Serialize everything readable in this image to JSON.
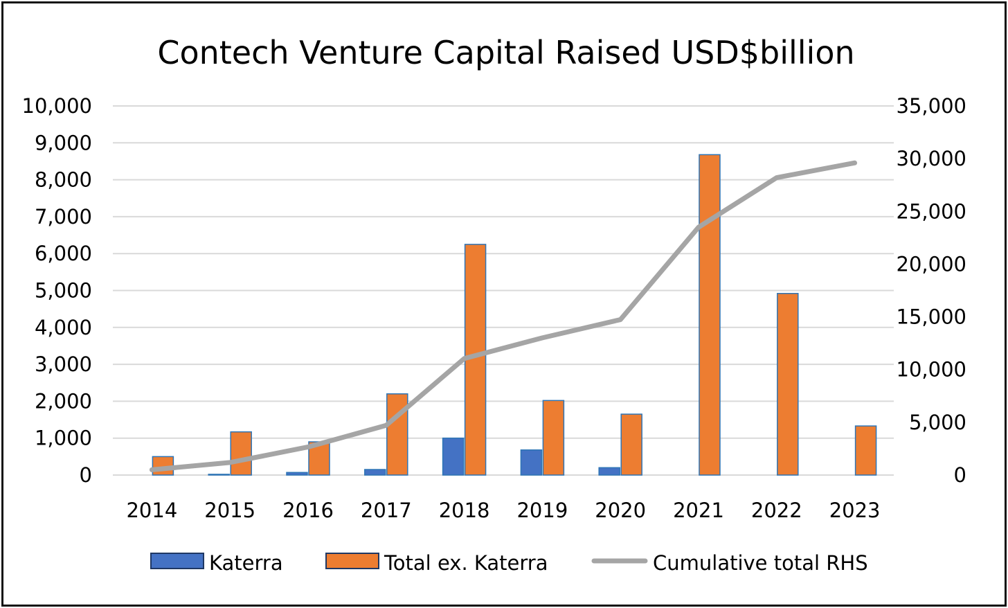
{
  "chart_data": {
    "type": "bar",
    "title": "Contech Venture Capital Raised USD$billion",
    "categories": [
      "2014",
      "2015",
      "2016",
      "2017",
      "2018",
      "2019",
      "2020",
      "2021",
      "2022",
      "2023"
    ],
    "series": [
      {
        "name": "Katerra",
        "type": "bar",
        "axis": "left",
        "color": "#4472c4",
        "values": [
          0,
          20,
          70,
          150,
          1000,
          680,
          200,
          0,
          0,
          0
        ]
      },
      {
        "name": "Total ex. Katerra",
        "type": "bar",
        "axis": "left",
        "color": "#ed7d31",
        "values": [
          500,
          1170,
          900,
          2200,
          6250,
          2020,
          1650,
          8680,
          4920,
          1330
        ]
      },
      {
        "name": "Cumulative total RHS",
        "type": "line",
        "axis": "right",
        "color": "#a5a5a5",
        "values": [
          500,
          1190,
          2660,
          4710,
          11050,
          13010,
          14740,
          23500,
          28200,
          29600
        ]
      }
    ],
    "y_left": {
      "min": 0,
      "max": 10000,
      "step": 1000,
      "tick_labels": [
        "0",
        "1,000",
        "2,000",
        "3,000",
        "4,000",
        "5,000",
        "6,000",
        "7,000",
        "8,000",
        "9,000",
        "10,000"
      ]
    },
    "y_right": {
      "min": 0,
      "max": 35000,
      "step": 5000,
      "tick_labels": [
        "0",
        "5,000",
        "10,000",
        "15,000",
        "20,000",
        "25,000",
        "30,000",
        "35,000"
      ]
    },
    "grid": true,
    "legend_position": "bottom",
    "bar_border_color": "#2e75b6"
  }
}
